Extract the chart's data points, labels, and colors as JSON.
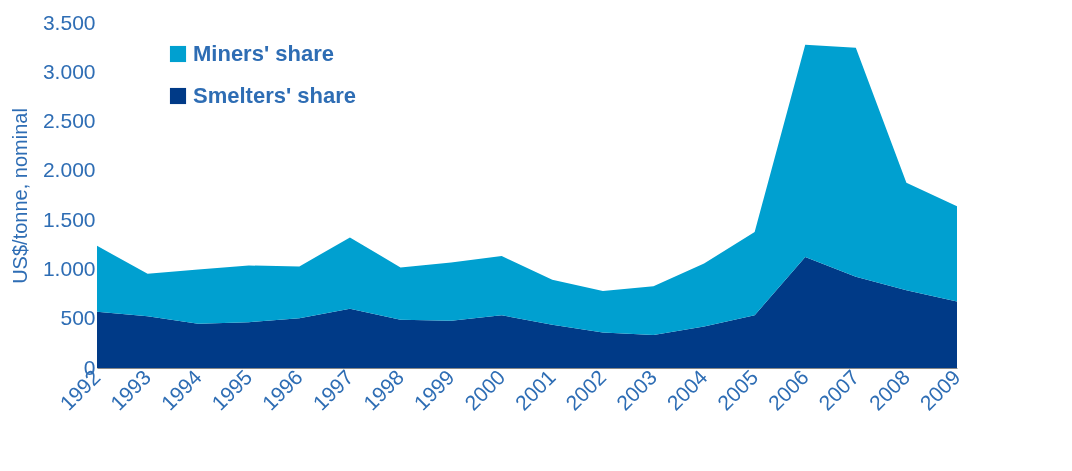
{
  "chart_data": {
    "type": "area",
    "stacked": true,
    "ylabel": "US$/tonne, nominal",
    "categories": [
      "1992",
      "1993",
      "1994",
      "1995",
      "1996",
      "1997",
      "1998",
      "1999",
      "2000",
      "2001",
      "2002",
      "2003",
      "2004",
      "2005",
      "2006",
      "2007",
      "2008",
      "2009"
    ],
    "series": [
      {
        "name": "Smelters' share",
        "color": "#003a87",
        "values": [
          570,
          525,
          450,
          465,
          505,
          600,
          490,
          480,
          535,
          440,
          360,
          335,
          420,
          535,
          1125,
          925,
          790,
          675
        ]
      },
      {
        "name": "Miners' share",
        "color": "#00a0d0",
        "values": [
          670,
          430,
          550,
          575,
          525,
          725,
          530,
          590,
          600,
          455,
          420,
          495,
          640,
          845,
          2155,
          2325,
          1090,
          965
        ]
      }
    ],
    "ylim": [
      0,
      3500
    ],
    "yticks": [
      0,
      500,
      {
        "value": 1000,
        "label": "1.000"
      },
      {
        "value": 1500,
        "label": "1.500"
      },
      {
        "value": 2000,
        "label": "2.000"
      },
      {
        "value": 2500,
        "label": "2.500"
      },
      {
        "value": 3000,
        "label": "3.000"
      },
      {
        "value": 3500,
        "label": "3.500"
      }
    ],
    "legend": "top left",
    "grid": false
  }
}
